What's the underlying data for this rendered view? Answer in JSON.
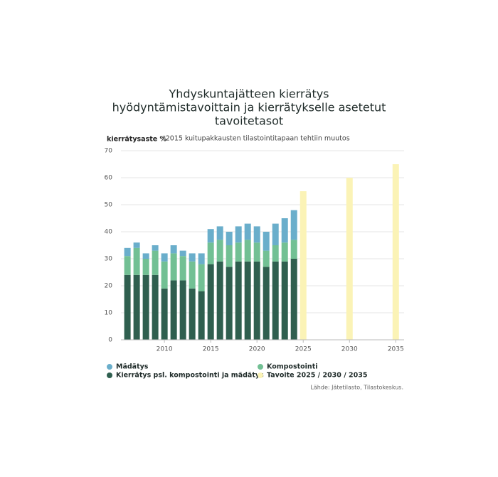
{
  "chart_data": {
    "type": "bar",
    "stacked": true,
    "title": [
      "Yhdyskuntajätteen kierrätys",
      "hyödyntämistavoittain ja kierrätykselle asetetut",
      "tavoitetasot"
    ],
    "y_label": "kierrätysaste %",
    "note": "*2015 kuitupakkausten tilastointitapaan tehtiin muutos",
    "source": "Lähde: Jätetilasto, Tilastokeskus.",
    "x": [
      2006,
      2007,
      2008,
      2009,
      2010,
      2011,
      2012,
      2013,
      2014,
      2015,
      2016,
      2017,
      2018,
      2019,
      2020,
      2021,
      2022,
      2023,
      2024
    ],
    "series": [
      {
        "name": "Kierrätys psl. kompostointi ja mädätys",
        "color": "#2f5f4f",
        "values": [
          24,
          24,
          24,
          24,
          19,
          22,
          22,
          19,
          18,
          28,
          29,
          27,
          29,
          29,
          29,
          27,
          29,
          29,
          30
        ]
      },
      {
        "name": "Kompostointi",
        "color": "#72c094",
        "values": [
          7,
          10,
          6,
          9,
          10,
          10,
          9,
          10,
          10,
          8,
          8,
          8,
          7,
          8,
          7,
          6,
          6,
          7,
          7
        ]
      },
      {
        "name": "Mädätys",
        "color": "#6aaecb",
        "values": [
          3,
          2,
          2,
          2,
          3,
          3,
          2,
          3,
          4,
          5,
          5,
          5,
          6,
          6,
          6,
          7,
          8,
          9,
          11
        ]
      }
    ],
    "target": {
      "name": "Tavoite 2025 / 2030 / 2035",
      "color": "#fbf3b6",
      "x": [
        2025,
        2030,
        2035
      ],
      "values": [
        55,
        60,
        65
      ]
    },
    "xlim": [
      2005.3,
      2035.9
    ],
    "ylim": [
      0,
      70
    ],
    "xticks": [
      2010,
      2015,
      2020,
      2025,
      2030,
      2035
    ],
    "yticks": [
      0,
      10,
      20,
      30,
      40,
      50,
      60,
      70
    ],
    "grid": true
  }
}
